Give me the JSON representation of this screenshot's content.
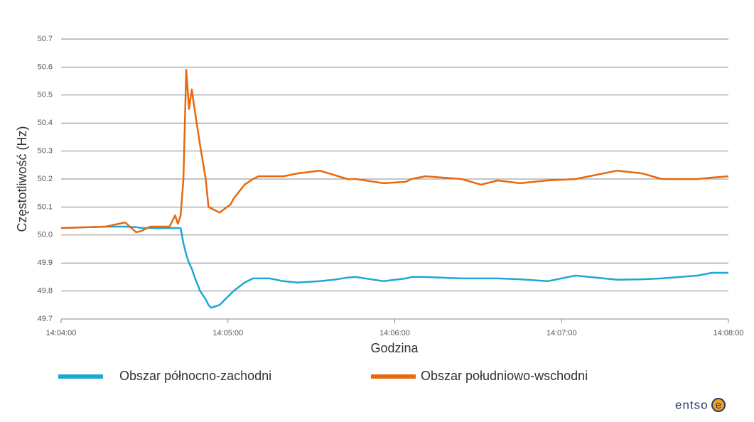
{
  "chart_data": {
    "type": "line",
    "y_label": "Częstotliwość (Hz)",
    "x_label": "Godzina",
    "x": [
      "14:04:00",
      "14:04:16",
      "14:04:23",
      "14:04:27",
      "14:04:29",
      "14:04:32",
      "14:04:39",
      "14:04:41",
      "14:04:42",
      "14:04:43",
      "14:04:44",
      "14:04:45",
      "14:04:46",
      "14:04:47",
      "14:04:48",
      "14:04:50",
      "14:04:52",
      "14:04:53",
      "14:04:54",
      "14:04:57",
      "14:05:01",
      "14:05:02",
      "14:05:06",
      "14:05:09",
      "14:05:11",
      "14:05:15",
      "14:05:20",
      "14:05:25",
      "14:05:33",
      "14:05:38",
      "14:05:43",
      "14:05:46",
      "14:05:56",
      "14:06:04",
      "14:06:06",
      "14:06:11",
      "14:06:24",
      "14:06:31",
      "14:06:37",
      "14:06:45",
      "14:06:55",
      "14:07:05",
      "14:07:20",
      "14:07:29",
      "14:07:36",
      "14:07:49",
      "14:07:54",
      "14:08:00"
    ],
    "series": [
      {
        "name": "Obszar północno-zachodni",
        "color": "#1ba8d6",
        "values": [
          50.025,
          50.03,
          50.03,
          50.028,
          50.025,
          50.025,
          50.025,
          50.025,
          50.025,
          50.025,
          49.97,
          49.93,
          49.9,
          49.88,
          49.85,
          49.8,
          49.77,
          49.75,
          49.74,
          49.75,
          49.79,
          49.8,
          49.83,
          49.845,
          49.845,
          49.845,
          49.835,
          49.83,
          49.835,
          49.84,
          49.848,
          49.85,
          49.835,
          49.845,
          49.85,
          49.85,
          49.845,
          49.845,
          49.845,
          49.842,
          49.835,
          49.855,
          49.84,
          49.842,
          49.845,
          49.855,
          49.865,
          49.865
        ]
      },
      {
        "name": "Obszar południowo-wschodni",
        "color": "#e8680e",
        "values": [
          50.025,
          50.03,
          50.045,
          50.01,
          50.015,
          50.03,
          50.03,
          50.07,
          50.04,
          50.07,
          50.2,
          50.59,
          50.45,
          50.52,
          50.45,
          50.32,
          50.2,
          50.1,
          50.095,
          50.08,
          50.11,
          50.13,
          50.18,
          50.2,
          50.21,
          50.21,
          50.21,
          50.22,
          50.23,
          50.215,
          50.2,
          50.2,
          50.185,
          50.19,
          50.2,
          50.21,
          50.2,
          50.18,
          50.195,
          50.185,
          50.195,
          50.2,
          50.23,
          50.22,
          50.2,
          50.2,
          50.205,
          50.21
        ]
      }
    ],
    "xlim": [
      "14:04:00",
      "14:08:00"
    ],
    "xticks": [
      "14:04:00",
      "14:05:00",
      "14:06:00",
      "14:07:00",
      "14:08:00"
    ],
    "ylim": [
      49.7,
      50.7
    ],
    "yticks": [
      49.7,
      49.8,
      49.9,
      {
        "value": 50,
        "label": "50.0"
      },
      50.1,
      50.2,
      50.3,
      50.4,
      50.5,
      50.6,
      50.7
    ],
    "grid": true,
    "logo": {
      "text": "entso",
      "mark": "e"
    }
  }
}
